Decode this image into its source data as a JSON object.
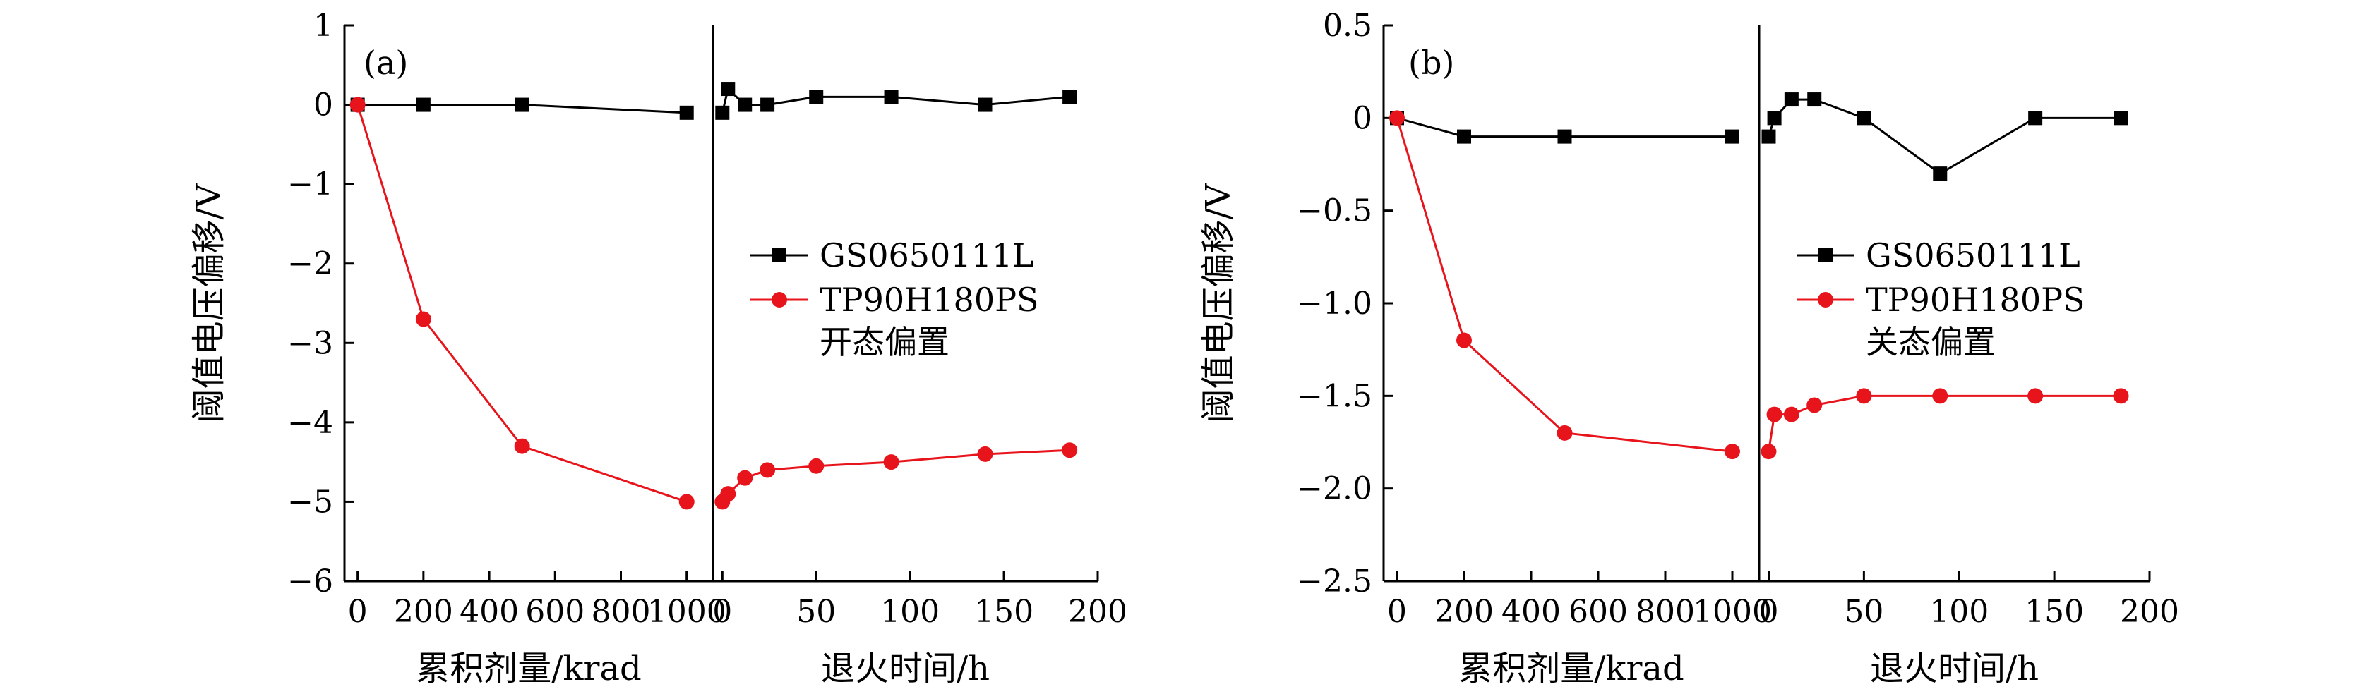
{
  "chart_data": [
    {
      "type": "line",
      "panel_label": "(a)",
      "ylabel": "阈值电压偏移/V",
      "ylim": [
        -6,
        1
      ],
      "yticks": [
        1,
        0,
        -1,
        -2,
        -3,
        -4,
        -5,
        -6
      ],
      "ytick_labels": [
        "1",
        "0",
        "−1",
        "−2",
        "−3",
        "−4",
        "−5",
        "−6"
      ],
      "legend": {
        "position": "right-middle",
        "entries": [
          "GS0650111L",
          "TP90H180PS"
        ],
        "note": "开态偏置"
      },
      "subplots": [
        {
          "xlabel": "累积剂量/krad",
          "xlim": [
            -40,
            1080
          ],
          "xticks": [
            0,
            200,
            400,
            600,
            800,
            1000
          ],
          "series": [
            {
              "name": "GS0650111L",
              "marker": "square",
              "color": "#000000",
              "x": [
                0,
                200,
                500,
                1000
              ],
              "y": [
                0,
                0,
                0,
                -0.1
              ]
            },
            {
              "name": "TP90H180PS",
              "marker": "circle",
              "color": "#e8141c",
              "x": [
                0,
                200,
                500,
                1000
              ],
              "y": [
                0,
                -2.7,
                -4.3,
                -5
              ]
            }
          ]
        },
        {
          "xlabel": "退火时间/h",
          "xlim": [
            -5,
            200
          ],
          "xticks": [
            0,
            50,
            100,
            150,
            200
          ],
          "series": [
            {
              "name": "GS0650111L",
              "marker": "square",
              "color": "#000000",
              "x": [
                0,
                3,
                12,
                24,
                50,
                90,
                140,
                185
              ],
              "y": [
                -0.1,
                0.2,
                0,
                0,
                0.1,
                0.1,
                0,
                0.1
              ]
            },
            {
              "name": "TP90H180PS",
              "marker": "circle",
              "color": "#e8141c",
              "x": [
                0,
                3,
                12,
                24,
                50,
                90,
                140,
                185
              ],
              "y": [
                -5,
                -4.9,
                -4.7,
                -4.6,
                -4.55,
                -4.5,
                -4.4,
                -4.35
              ]
            }
          ]
        }
      ]
    },
    {
      "type": "line",
      "panel_label": "(b)",
      "ylabel": "阈值电压偏移/V",
      "ylim": [
        -2.5,
        0.5
      ],
      "yticks": [
        0.5,
        0,
        -0.5,
        -1,
        -1.5,
        -2,
        -2.5
      ],
      "ytick_labels": [
        "0.5",
        "0",
        "−0.5",
        "−1.0",
        "−1.5",
        "−2.0",
        "−2.5"
      ],
      "legend": {
        "position": "right-middle",
        "entries": [
          "GS0650111L",
          "TP90H180PS"
        ],
        "note": "关态偏置"
      },
      "subplots": [
        {
          "xlabel": "累积剂量/krad",
          "xlim": [
            -40,
            1080
          ],
          "xticks": [
            0,
            200,
            400,
            600,
            800,
            1000
          ],
          "series": [
            {
              "name": "GS0650111L",
              "marker": "square",
              "color": "#000000",
              "x": [
                0,
                200,
                500,
                1000
              ],
              "y": [
                0,
                -0.1,
                -0.1,
                -0.1
              ]
            },
            {
              "name": "TP90H180PS",
              "marker": "circle",
              "color": "#e8141c",
              "x": [
                0,
                200,
                500,
                1000
              ],
              "y": [
                0,
                -1.2,
                -1.7,
                -1.8
              ]
            }
          ]
        },
        {
          "xlabel": "退火时间/h",
          "xlim": [
            -5,
            200
          ],
          "xticks": [
            0,
            50,
            100,
            150,
            200
          ],
          "series": [
            {
              "name": "GS0650111L",
              "marker": "square",
              "color": "#000000",
              "x": [
                0,
                3,
                12,
                24,
                50,
                90,
                140,
                185
              ],
              "y": [
                -0.1,
                0,
                0.1,
                0.1,
                0,
                -0.3,
                0,
                0
              ]
            },
            {
              "name": "TP90H180PS",
              "marker": "circle",
              "color": "#e8141c",
              "x": [
                0,
                3,
                12,
                24,
                50,
                90,
                140,
                185
              ],
              "y": [
                -1.8,
                -1.6,
                -1.6,
                -1.55,
                -1.5,
                -1.5,
                -1.5,
                -1.5
              ]
            }
          ]
        }
      ]
    }
  ]
}
